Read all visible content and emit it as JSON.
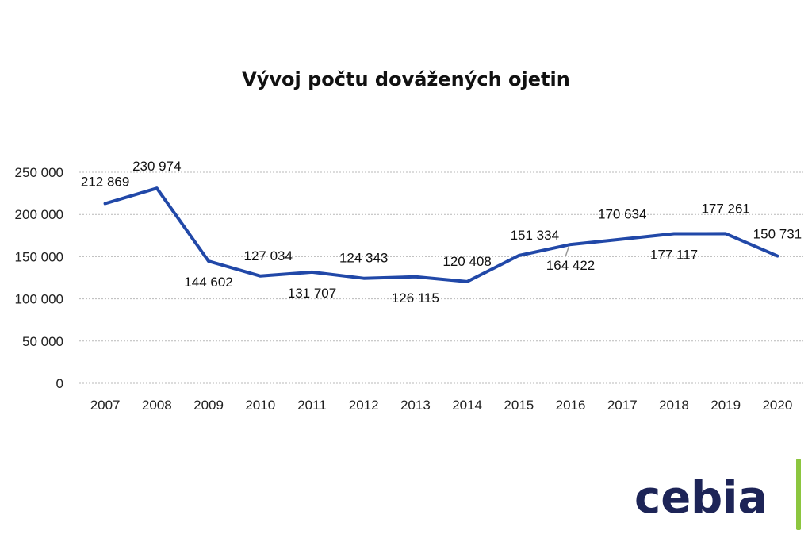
{
  "chart_data": {
    "type": "line",
    "title": "Vývoj počtu dovážených ojetin",
    "categories": [
      "2007",
      "2008",
      "2009",
      "2010",
      "2011",
      "2012",
      "2013",
      "2014",
      "2015",
      "2016",
      "2017",
      "2018",
      "2019",
      "2020"
    ],
    "series": [
      {
        "values": [
          212869,
          230974,
          144602,
          127034,
          131707,
          124343,
          126115,
          120408,
          151334,
          164422,
          170634,
          177117,
          177261,
          150731
        ]
      }
    ],
    "data_labels": [
      "212 869",
      "230 974",
      "144 602",
      "127 034",
      "131 707",
      "124 343",
      "126 115",
      "120 408",
      "151 334",
      "164 422",
      "170 634",
      "177 117",
      "177 261",
      "150 731"
    ],
    "y_ticks": [
      0,
      50000,
      100000,
      150000,
      200000,
      250000
    ],
    "y_tick_labels": [
      "0",
      "50 000",
      "100 000",
      "150 000",
      "200 000",
      "250 000"
    ],
    "ylim": [
      0,
      250000
    ],
    "grid": true,
    "legend": "none",
    "series_color": "#2148a8"
  },
  "logo": {
    "text": "cebia",
    "text_color": "#1d2457",
    "accent_color": "#8cc63f"
  }
}
